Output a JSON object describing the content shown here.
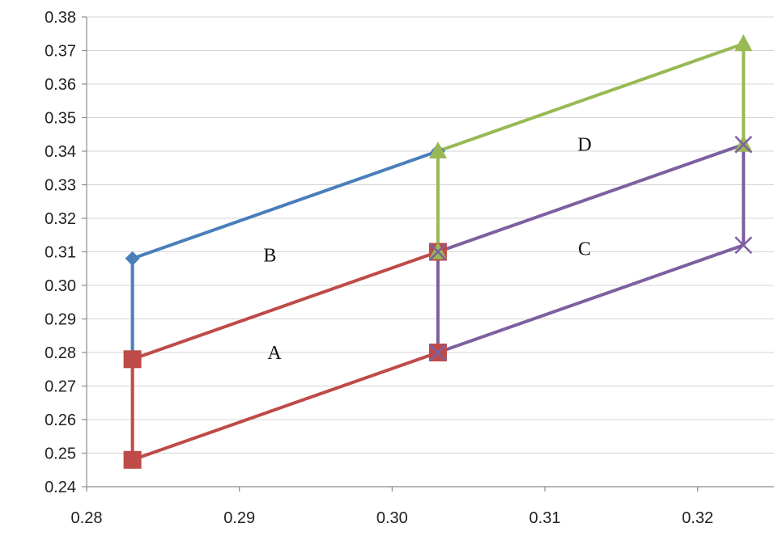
{
  "chart_data": {
    "type": "line",
    "title": "",
    "xlabel": "",
    "ylabel": "",
    "xlim": [
      0.28,
      0.325
    ],
    "ylim": [
      0.24,
      0.38
    ],
    "x_ticks": [
      "0.28",
      "0.29",
      "0.30",
      "0.31",
      "0.32"
    ],
    "y_ticks": [
      "0.24",
      "0.25",
      "0.26",
      "0.27",
      "0.28",
      "0.29",
      "0.30",
      "0.31",
      "0.32",
      "0.33",
      "0.34",
      "0.35",
      "0.36",
      "0.37",
      "0.38"
    ],
    "grid": "horizontal",
    "legend": "none",
    "series": [
      {
        "key": "blue",
        "color": "#4a7ebb",
        "marker": "diamond",
        "points": [
          [
            0.283,
            0.278
          ],
          [
            0.283,
            0.308
          ],
          [
            0.303,
            0.34
          ]
        ]
      },
      {
        "key": "red",
        "color": "#be4b48",
        "marker": "square",
        "points": [
          [
            0.303,
            0.31
          ],
          [
            0.283,
            0.278
          ],
          [
            0.283,
            0.248
          ],
          [
            0.303,
            0.28
          ]
        ]
      },
      {
        "key": "green",
        "color": "#98b954",
        "marker": "triangle",
        "points": [
          [
            0.303,
            0.31
          ],
          [
            0.303,
            0.34
          ],
          [
            0.323,
            0.372
          ],
          [
            0.323,
            0.342
          ]
        ]
      },
      {
        "key": "purple",
        "color": "#7d60a0",
        "marker": "x",
        "points": [
          [
            0.303,
            0.28
          ],
          [
            0.303,
            0.31
          ],
          [
            0.323,
            0.342
          ],
          [
            0.323,
            0.312
          ],
          [
            0.303,
            0.28
          ]
        ]
      }
    ],
    "annotations": [
      {
        "text": "A",
        "x": 0.2923,
        "y": 0.28
      },
      {
        "text": "B",
        "x": 0.292,
        "y": 0.309
      },
      {
        "text": "C",
        "x": 0.3126,
        "y": 0.311
      },
      {
        "text": "D",
        "x": 0.3126,
        "y": 0.342
      }
    ]
  }
}
